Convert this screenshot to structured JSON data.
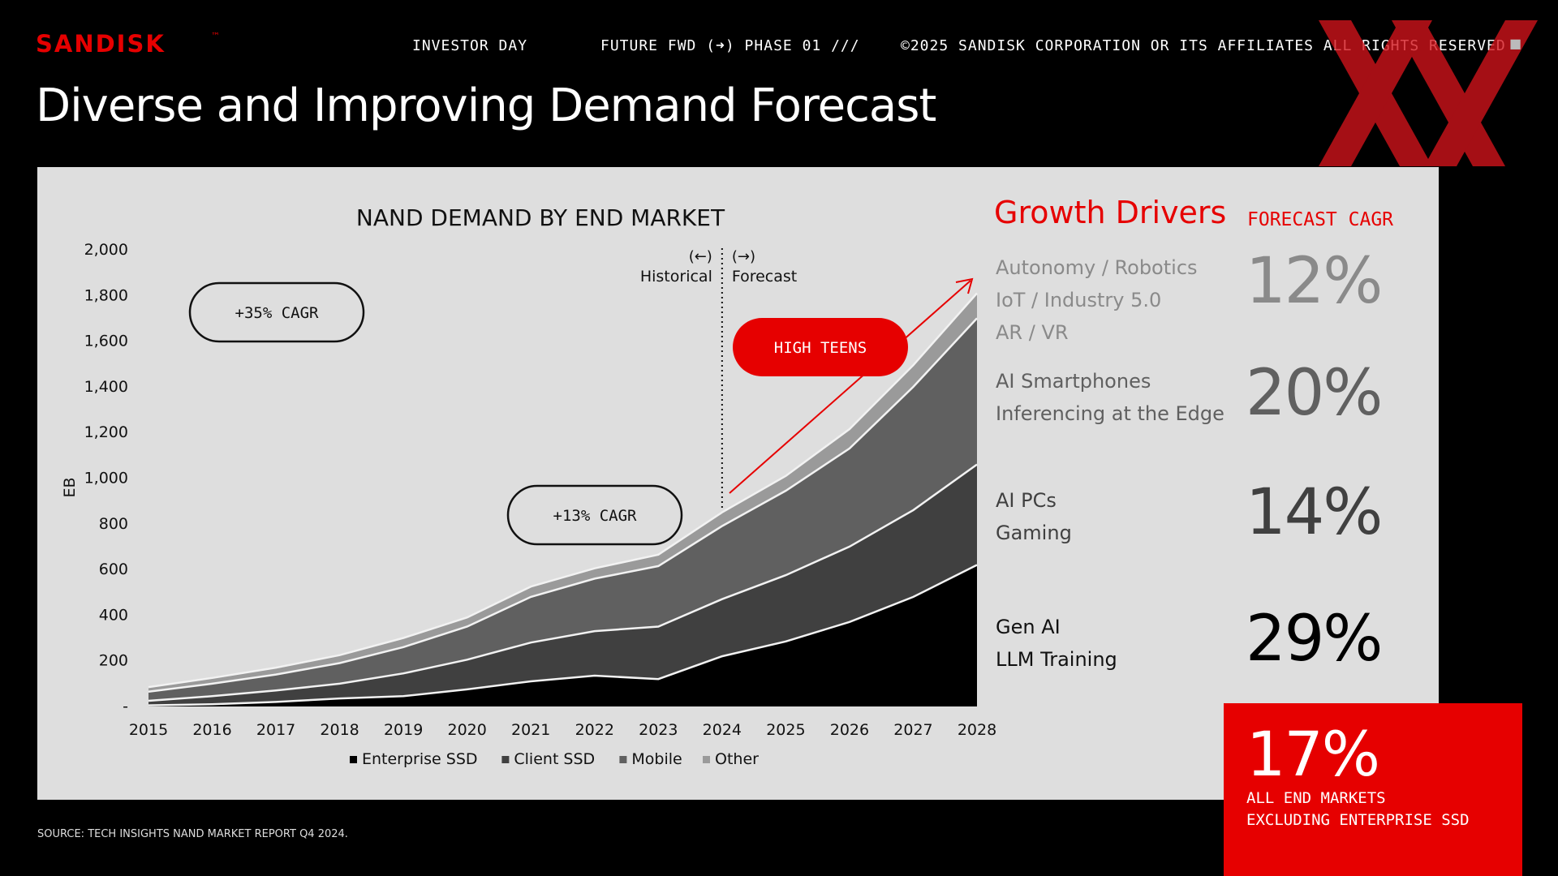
{
  "header": {
    "logo_text": "SANDISK",
    "logo_tm": "™",
    "nav_investor_day": "INVESTOR DAY",
    "nav_future": "FUTURE FWD (➜) PHASE 01 ///",
    "nav_copyright": "©2025 SANDISK CORPORATION OR ITS AFFILIATES ALL RIGHTS RESERVED",
    "nav_square": "■"
  },
  "slide_title": "Diverse and Improving Demand Forecast",
  "colors": {
    "brand_red": "#e60000",
    "enterprise_ssd": "#000000",
    "client_ssd": "#404040",
    "mobile": "#606060",
    "other": "#9a9a9a",
    "panel_bg": "#dedede"
  },
  "chart_data": {
    "type": "area",
    "stacked": true,
    "title": "NAND DEMAND BY END MARKET",
    "ylabel": "EB",
    "xlabel": "",
    "ylim": [
      0,
      2000
    ],
    "yticks": [
      0,
      200,
      400,
      600,
      800,
      1000,
      1200,
      1400,
      1600,
      1800,
      2000
    ],
    "ytick_labels": [
      "-",
      "200",
      "400",
      "600",
      "800",
      "1,000",
      "1,200",
      "1,400",
      "1,600",
      "1,800",
      "2,000"
    ],
    "x": [
      2015,
      2016,
      2017,
      2018,
      2019,
      2020,
      2021,
      2022,
      2023,
      2024,
      2025,
      2026,
      2027,
      2028
    ],
    "grid": false,
    "legend": "bottom",
    "series": [
      {
        "name": "Enterprise SSD",
        "values": [
          5,
          10,
          20,
          35,
          45,
          75,
          110,
          135,
          120,
          220,
          285,
          370,
          480,
          620
        ]
      },
      {
        "name": "Client SSD",
        "values": [
          20,
          35,
          50,
          65,
          100,
          130,
          170,
          195,
          230,
          250,
          290,
          330,
          380,
          440
        ]
      },
      {
        "name": "Mobile",
        "values": [
          40,
          55,
          70,
          90,
          115,
          145,
          200,
          230,
          265,
          320,
          370,
          430,
          540,
          640
        ]
      },
      {
        "name": "Other",
        "values": [
          20,
          25,
          30,
          35,
          40,
          40,
          45,
          45,
          50,
          60,
          65,
          85,
          95,
          110
        ]
      }
    ],
    "divider_x": 2024,
    "historical_label": "Historical",
    "historical_arrow": "(←)",
    "forecast_label": "Forecast",
    "forecast_arrow": "(→)",
    "annotations": [
      {
        "text": "+35% CAGR"
      },
      {
        "text": "+13% CAGR"
      },
      {
        "text": "HIGH TEENS"
      }
    ]
  },
  "growth_drivers": {
    "heading": "Growth Drivers",
    "cagr_heading": "FORECAST CAGR",
    "rows": [
      {
        "drivers": [
          "Autonomy / Robotics",
          "IoT / Industry 5.0",
          "AR / VR"
        ],
        "cagr": "12%",
        "color": "#8a8a8a"
      },
      {
        "drivers": [
          "AI Smartphones",
          "Inferencing at the Edge"
        ],
        "cagr": "20%",
        "color": "#606060"
      },
      {
        "drivers": [
          "AI PCs",
          "Gaming"
        ],
        "cagr": "14%",
        "color": "#404040"
      },
      {
        "drivers": [
          "Gen AI",
          "LLM Training"
        ],
        "cagr": "29%",
        "color": "#000000"
      }
    ]
  },
  "summary": {
    "value": "17%",
    "line1": "ALL END MARKETS",
    "line2": "EXCLUDING ENTERPRISE SSD"
  },
  "source": "SOURCE: TECH INSIGHTS NAND MARKET REPORT Q4 2024."
}
